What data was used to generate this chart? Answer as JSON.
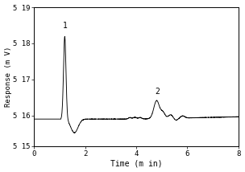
{
  "title": "",
  "xlabel": "Time (m in)",
  "ylabel": "Response (m V)",
  "xlim": [
    0,
    8
  ],
  "ylim": [
    515.15,
    519.0
  ],
  "ytick_positions": [
    515.15,
    516.0,
    517.0,
    518.0,
    519.0
  ],
  "ytick_labels": [
    "5 15",
    "5 16",
    "5 17",
    "5 18",
    "5 19"
  ],
  "xticks": [
    0,
    2,
    4,
    6,
    8
  ],
  "xtick_labels": [
    "0",
    "2",
    "4",
    "6",
    "8"
  ],
  "line_color": "#000000",
  "background_color": "#ffffff",
  "peak1_label": "1",
  "peak2_label": "2",
  "baseline": 515.9
}
